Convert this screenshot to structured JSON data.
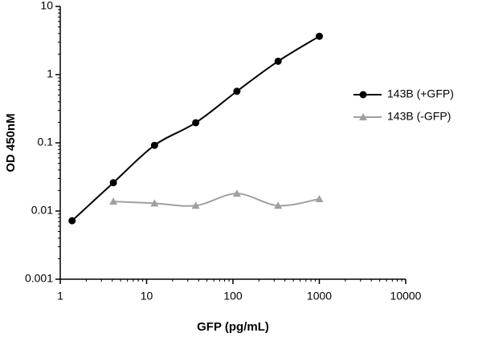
{
  "chart_data": {
    "type": "scatter",
    "xlabel": "GFP (pg/mL)",
    "ylabel": "OD 450nM",
    "xscale": "log",
    "yscale": "log",
    "xlim": [
      1,
      10000
    ],
    "xticks": [
      1,
      10,
      100,
      1000,
      10000
    ],
    "ylim": [
      0.001,
      10
    ],
    "yticks": [
      0.001,
      0.01,
      0.1,
      1,
      10
    ],
    "legend": "right",
    "series": [
      {
        "name": "143B (+GFP)",
        "color": "#000000",
        "marker": "circle",
        "x": [
          1.37,
          4.12,
          12.35,
          37.04,
          111.1,
          333.3,
          1000
        ],
        "values": [
          0.0072,
          0.026,
          0.092,
          0.197,
          0.57,
          1.57,
          3.65
        ]
      },
      {
        "name": "143B (-GFP)",
        "color": "#a0a0a0",
        "marker": "triangle",
        "x": [
          4.12,
          12.35,
          37.04,
          111.1,
          333.3,
          1000
        ],
        "values": [
          0.0138,
          0.013,
          0.012,
          0.018,
          0.012,
          0.015
        ]
      }
    ]
  }
}
